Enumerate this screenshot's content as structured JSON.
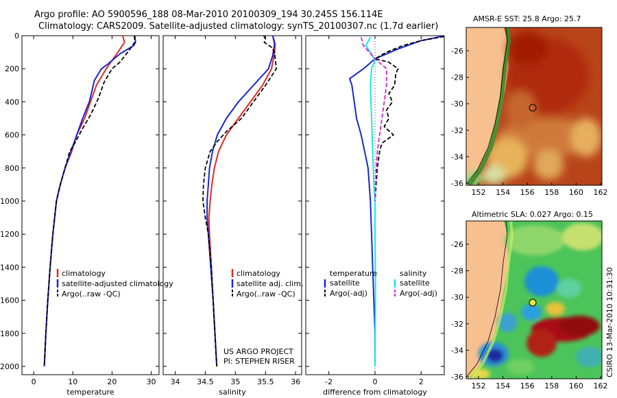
{
  "title_line1": "Argo profile: AO 5900596_188 08-Mar-2010 20100309_194 30.245S 156.114E",
  "title_line2": "Climatology: CARS2009. Satellite-adjusted climatology: synTS_20100307.nc (1.7d earlier)",
  "credit_line1": "US ARGO PROJECT",
  "credit_line2": "PI: STEPHEN RISER",
  "side_stamp": "CSIRO 13-Mar-2010 10:31:30",
  "colors": {
    "clim": "#e8261c",
    "sat": "#1426d2",
    "argo": "#000000",
    "cyan": "#14e8e8",
    "magenta": "#d21fd2",
    "land": "#f7c08f"
  },
  "chart_data": [
    {
      "type": "line",
      "name": "temperature-panel",
      "xlabel": "temperature",
      "ylabel": "",
      "xlim": [
        -3,
        32
      ],
      "ylim": [
        2050,
        0
      ],
      "xticks": [
        0,
        10,
        20,
        30
      ],
      "yticks": [
        0,
        200,
        400,
        600,
        800,
        1000,
        1200,
        1400,
        1600,
        1800,
        2000
      ],
      "legend": [
        "climatology",
        "satellite-adjusted climatology",
        "Argo(..raw -QC)"
      ],
      "series": [
        {
          "name": "climatology",
          "color": "clim",
          "dash": false,
          "points": [
            [
              22.7,
              0
            ],
            [
              23.2,
              40
            ],
            [
              21.5,
              100
            ],
            [
              18.5,
              200
            ],
            [
              16,
              300
            ],
            [
              14.5,
              400
            ],
            [
              13,
              500
            ],
            [
              11,
              600
            ],
            [
              9.7,
              700
            ],
            [
              8,
              800
            ],
            [
              6.8,
              900
            ],
            [
              5.8,
              1000
            ],
            [
              4.9,
              1200
            ],
            [
              4.2,
              1400
            ],
            [
              3.6,
              1600
            ],
            [
              3.1,
              1800
            ],
            [
              2.7,
              2000
            ]
          ]
        },
        {
          "name": "satellite-adjusted climatology",
          "color": "sat",
          "dash": false,
          "points": [
            [
              25.8,
              0
            ],
            [
              26,
              40
            ],
            [
              25.5,
              60
            ],
            [
              22,
              110
            ],
            [
              19,
              170
            ],
            [
              17.3,
              200
            ],
            [
              15.5,
              270
            ],
            [
              14.2,
              400
            ],
            [
              12.5,
              500
            ],
            [
              11,
              600
            ],
            [
              9.5,
              700
            ],
            [
              8,
              800
            ],
            [
              6.8,
              900
            ],
            [
              5.8,
              1000
            ],
            [
              4.9,
              1200
            ],
            [
              4.2,
              1400
            ],
            [
              3.6,
              1600
            ],
            [
              3.1,
              1800
            ],
            [
              2.7,
              2000
            ]
          ]
        },
        {
          "name": "Argo(..raw -QC)",
          "color": "argo",
          "dash": true,
          "points": [
            [
              25.7,
              0
            ],
            [
              25.8,
              40
            ],
            [
              24,
              100
            ],
            [
              22,
              160
            ],
            [
              20,
              200
            ],
            [
              18,
              280
            ],
            [
              16.5,
              380
            ],
            [
              14.5,
              480
            ],
            [
              12.5,
              560
            ],
            [
              10.5,
              650
            ],
            [
              9.2,
              700
            ],
            [
              8,
              800
            ],
            [
              6.8,
              900
            ],
            [
              5.8,
              1000
            ],
            [
              4.9,
              1200
            ],
            [
              4.2,
              1400
            ],
            [
              3.6,
              1600
            ],
            [
              3.1,
              1800
            ],
            [
              2.7,
              2000
            ]
          ]
        }
      ]
    },
    {
      "type": "line",
      "name": "salinity-panel",
      "xlabel": "salinity",
      "xlim": [
        33.8,
        36.1
      ],
      "ylim": [
        2050,
        0
      ],
      "xticks": [
        34,
        34.5,
        35,
        35.5,
        36
      ],
      "xticklabels": [
        "34",
        "34.5",
        "35",
        "35.5",
        "36"
      ],
      "legend": [
        "climatology",
        "satellite adj. clim.",
        "Argo(..raw -QC)"
      ],
      "series": [
        {
          "name": "climatology",
          "color": "clim",
          "dash": false,
          "points": [
            [
              35.62,
              0
            ],
            [
              35.66,
              50
            ],
            [
              35.65,
              100
            ],
            [
              35.6,
              200
            ],
            [
              35.45,
              300
            ],
            [
              35.25,
              400
            ],
            [
              35.05,
              500
            ],
            [
              34.85,
              600
            ],
            [
              34.72,
              700
            ],
            [
              34.65,
              800
            ],
            [
              34.61,
              900
            ],
            [
              34.58,
              1000
            ],
            [
              34.56,
              1100
            ],
            [
              34.57,
              1200
            ],
            [
              34.6,
              1400
            ],
            [
              34.63,
              1600
            ],
            [
              34.66,
              1800
            ],
            [
              34.69,
              2000
            ]
          ]
        },
        {
          "name": "satellite adj. clim.",
          "color": "sat",
          "dash": false,
          "points": [
            [
              35.62,
              0
            ],
            [
              35.65,
              50
            ],
            [
              35.62,
              120
            ],
            [
              35.55,
              200
            ],
            [
              35.3,
              300
            ],
            [
              35.05,
              400
            ],
            [
              34.85,
              500
            ],
            [
              34.7,
              600
            ],
            [
              34.62,
              700
            ],
            [
              34.57,
              800
            ],
            [
              34.55,
              900
            ],
            [
              34.53,
              1000
            ],
            [
              34.53,
              1100
            ],
            [
              34.55,
              1200
            ],
            [
              34.59,
              1400
            ],
            [
              34.63,
              1600
            ],
            [
              34.66,
              1800
            ],
            [
              34.69,
              2000
            ]
          ]
        },
        {
          "name": "Argo(..raw -QC)",
          "color": "argo",
          "dash": true,
          "points": [
            [
              35.47,
              0
            ],
            [
              35.5,
              20
            ],
            [
              35.48,
              40
            ],
            [
              35.6,
              70
            ],
            [
              35.65,
              100
            ],
            [
              35.68,
              200
            ],
            [
              35.5,
              300
            ],
            [
              35.3,
              400
            ],
            [
              35.1,
              500
            ],
            [
              34.85,
              580
            ],
            [
              34.7,
              640
            ],
            [
              34.58,
              700
            ],
            [
              34.5,
              800
            ],
            [
              34.47,
              900
            ],
            [
              34.46,
              1000
            ],
            [
              34.5,
              1100
            ],
            [
              34.55,
              1200
            ],
            [
              34.6,
              1400
            ],
            [
              34.63,
              1600
            ],
            [
              34.66,
              1800
            ],
            [
              34.69,
              2000
            ]
          ]
        }
      ]
    },
    {
      "type": "line",
      "name": "difference-panel",
      "xlabel": "difference from climatology",
      "xlim": [
        -3,
        3
      ],
      "ylim": [
        2050,
        0
      ],
      "xticks": [
        -2,
        0,
        2
      ],
      "legend_left": {
        "header": "temperature",
        "items": [
          "satellite",
          "Argo(-adj)"
        ]
      },
      "legend_right": {
        "header": "salinity",
        "items": [
          "satellite",
          "Argo(-adj)"
        ]
      },
      "series": [
        {
          "name": "temperature satellite",
          "color": "sat",
          "dash": false,
          "points": [
            [
              3,
              0
            ],
            [
              2.7,
              10
            ],
            [
              2,
              30
            ],
            [
              1,
              80
            ],
            [
              0,
              140
            ],
            [
              -0.5,
              200
            ],
            [
              -1.1,
              260
            ],
            [
              -1,
              300
            ],
            [
              -0.9,
              400
            ],
            [
              -0.8,
              500
            ],
            [
              -0.6,
              600
            ],
            [
              -0.45,
              700
            ],
            [
              -0.3,
              800
            ],
            [
              -0.2,
              1000
            ],
            [
              -0.15,
              1200
            ],
            [
              -0.1,
              1400
            ],
            [
              -0.05,
              1600
            ],
            [
              0,
              1800
            ],
            [
              0,
              2000
            ]
          ]
        },
        {
          "name": "temperature Argo(-adj)",
          "color": "argo",
          "dash": true,
          "points": [
            [
              3,
              5
            ],
            [
              2,
              30
            ],
            [
              1.2,
              60
            ],
            [
              0.5,
              100
            ],
            [
              0,
              140
            ],
            [
              0.6,
              160
            ],
            [
              1,
              200
            ],
            [
              0.9,
              230
            ],
            [
              0.85,
              300
            ],
            [
              0.6,
              350
            ],
            [
              0.75,
              400
            ],
            [
              0.5,
              450
            ],
            [
              0.6,
              500
            ],
            [
              0.4,
              550
            ],
            [
              0.8,
              600
            ],
            [
              0.3,
              650
            ],
            [
              0.2,
              700
            ],
            [
              0.1,
              800
            ],
            [
              0.05,
              900
            ],
            [
              0,
              1000
            ],
            [
              0,
              1200
            ]
          ]
        },
        {
          "name": "salinity satellite",
          "color": "cyan",
          "dash": false,
          "points": [
            [
              -0.2,
              10
            ],
            [
              -0.4,
              60
            ],
            [
              -0.2,
              100
            ],
            [
              0,
              150
            ],
            [
              -0.15,
              200
            ],
            [
              -0.2,
              300
            ],
            [
              -0.15,
              500
            ],
            [
              -0.1,
              700
            ],
            [
              -0.05,
              900
            ],
            [
              0,
              1000
            ],
            [
              0,
              1200
            ],
            [
              0.02,
              1500
            ],
            [
              0,
              2000
            ]
          ]
        },
        {
          "name": "salinity Argo(-adj)",
          "color": "magenta",
          "dash": true,
          "points": [
            [
              -0.6,
              10
            ],
            [
              -0.5,
              60
            ],
            [
              0,
              140
            ],
            [
              0.5,
              200
            ],
            [
              0.5,
              300
            ],
            [
              0.4,
              400
            ],
            [
              0.3,
              500
            ],
            [
              0.2,
              600
            ],
            [
              0.1,
              700
            ],
            [
              0.05,
              800
            ],
            [
              0,
              1000
            ]
          ]
        }
      ]
    }
  ],
  "maps": [
    {
      "title": "AMSR-E SST: 25.8 Argo: 25.7",
      "xticks": [
        "152",
        "154",
        "156",
        "158",
        "160",
        "162"
      ],
      "yticks": [
        "-26",
        "-28",
        "-30",
        "-32",
        "-34",
        "-36"
      ]
    },
    {
      "title": "Altimetric SLA: 0.027 Argo: 0.15",
      "xticks": [
        "152",
        "154",
        "156",
        "158",
        "160",
        "162"
      ],
      "yticks": [
        "-26",
        "-28",
        "-30",
        "-32",
        "-34",
        "-36"
      ]
    }
  ]
}
